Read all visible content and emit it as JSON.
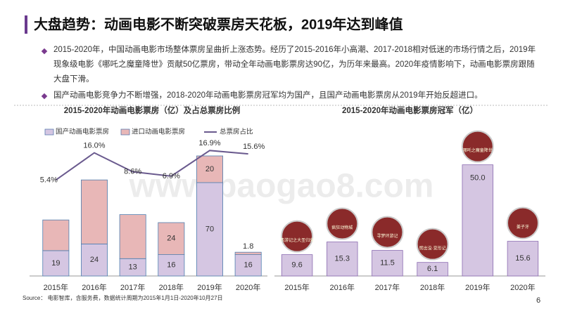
{
  "header": {
    "title": "大盘趋势：动画电影不断突破票房天花板，2019年达到峰值"
  },
  "bullets": [
    "2015-2020年，中国动画电影市场整体票房呈曲折上涨态势。经历了2015-2016年小高潮、2017-2018相对低迷的市场行情之后，2019年现象级电影《哪吒之魔童降世》贡献50亿票房，带动全年动画电影票房达90亿，为历年来最高。2020年疫情影响下，动画电影票房跟随大盘下滑。",
    "国产动画电影竞争力不断增强，2018-2020年动画电影票房冠军均为国产，且国产动画电影票房从2019年开始反超进口。"
  ],
  "chart_data": [
    {
      "type": "stacked_bar_line",
      "title": "2015-2020年动画电影票房（亿）及占总票房比例",
      "categories": [
        "2015年",
        "2016年",
        "2017年",
        "2018年",
        "2019年",
        "2020年"
      ],
      "ylim": [
        0,
        100
      ],
      "y2lim": [
        -32,
        20
      ],
      "series": [
        {
          "name": "国产动画电影票房",
          "color": "#d5c6e2",
          "values": [
            19,
            24,
            13,
            16,
            70,
            16
          ],
          "value_labels": [
            "19",
            "24",
            "13",
            "16",
            "70",
            "16"
          ]
        },
        {
          "name": "进口动画电影票房",
          "color": "#e8b7b7",
          "values": [
            23,
            48,
            33,
            24,
            20,
            1.8
          ],
          "value_labels": [
            null,
            null,
            null,
            "24",
            "20",
            "1.8"
          ]
        },
        {
          "name": "总票房占比",
          "color": "#6a5a8e",
          "axis": "y2",
          "type": "line",
          "values": [
            5.4,
            16.0,
            8.6,
            6.9,
            16.9,
            15.6
          ],
          "value_labels": [
            "5.4%",
            "16.0%",
            "8.6%",
            "6.9%",
            "16.9%",
            "15.6%"
          ]
        }
      ]
    },
    {
      "type": "bar",
      "title": "2015-2020年动画电影票房冠军（亿）",
      "categories": [
        "2015年",
        "2016年",
        "2017年",
        "2018年",
        "2019年",
        "2020年"
      ],
      "ylim": [
        0,
        60
      ],
      "color": "#d5c6e2",
      "values": [
        9.6,
        15.3,
        11.5,
        6.1,
        50.0,
        15.6
      ],
      "value_labels": [
        "9.6",
        "15.3",
        "11.5",
        "6.1",
        "50.0",
        "15.6"
      ],
      "annotations": [
        "西游记之大圣归来",
        "疯狂动物城",
        "寻梦环游记",
        "熊出没·变形记",
        "哪吒之魔童降世",
        "姜子牙"
      ]
    }
  ],
  "watermark": "www.baogao8.com",
  "source": "Source： 电影智库，含服务费，数据统计周期为2015年1月1日-2020年10月27日",
  "page_number": "6"
}
